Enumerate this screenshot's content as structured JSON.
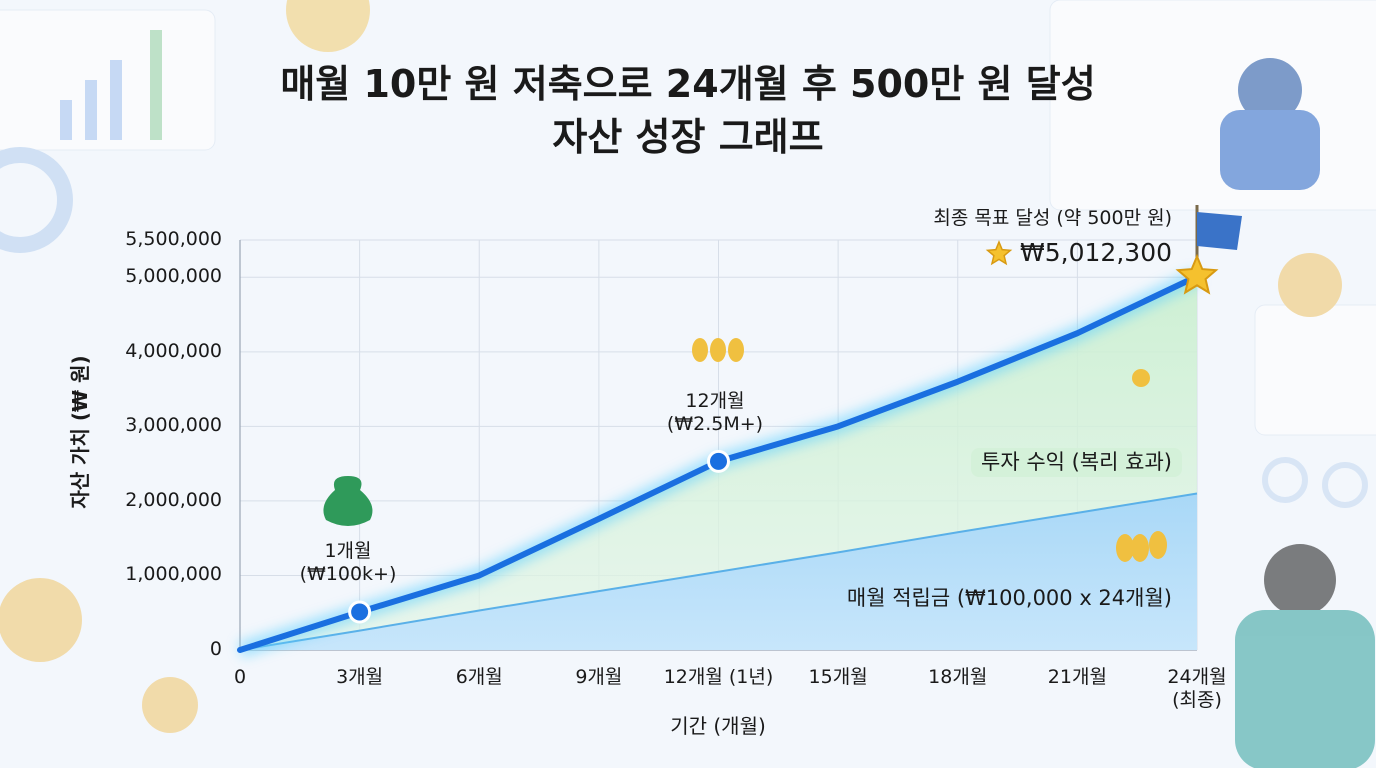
{
  "chart_data": {
    "type": "area",
    "title": "매월 10만 원 저축으로 24개월 후 500만 원 달성\n자산 성장 그래프",
    "x_label": "기간 (개월)",
    "y_label": "자산 가치 (₩ 원)",
    "x": [
      0,
      3,
      6,
      9,
      12,
      15,
      18,
      21,
      24
    ],
    "series": [
      {
        "name": "투자 수익 (복리 효과)",
        "color": "#1a6fe0",
        "values": [
          0,
          510000,
          1000000,
          1760000,
          2530000,
          3000000,
          3600000,
          4250000,
          5012300
        ]
      },
      {
        "name": "매월 적립금 (₩100,000 x 24개월)",
        "color": "#5ab0e8",
        "values": [
          0,
          260000,
          530000,
          790000,
          1050000,
          1310000,
          1580000,
          1840000,
          2100000
        ]
      }
    ],
    "annotations": [
      "1개월\n(₩100k+)",
      "12개월\n(₩2.5M+)",
      "최종 목표 달성 (약 500만 원)",
      "₩5,012,300"
    ],
    "xlim": [
      0,
      24
    ],
    "xticks": [
      0,
      {
        "value": 3,
        "label": "3개월"
      },
      {
        "value": 6,
        "label": "6개월"
      },
      {
        "value": 9,
        "label": "9개월"
      },
      {
        "value": 12,
        "label": "12개월 (1년)"
      },
      {
        "value": 15,
        "label": "15개월"
      },
      {
        "value": 18,
        "label": "18개월"
      },
      {
        "value": 21,
        "label": "21개월"
      },
      {
        "value": 24,
        "label": "24개월\n(최종)"
      }
    ],
    "ylim": [
      0,
      5500000
    ],
    "yticks": [
      0,
      {
        "value": 1000000,
        "label": "1,000,000"
      },
      {
        "value": 2000000,
        "label": "2,000,000"
      },
      {
        "value": 3000000,
        "label": "3,000,000"
      },
      {
        "value": 4000000,
        "label": "4,000,000"
      },
      {
        "value": 5000000,
        "label": "5,000,000"
      },
      {
        "value": 5500000,
        "label": "5,500,000"
      }
    ],
    "grid": true
  }
}
